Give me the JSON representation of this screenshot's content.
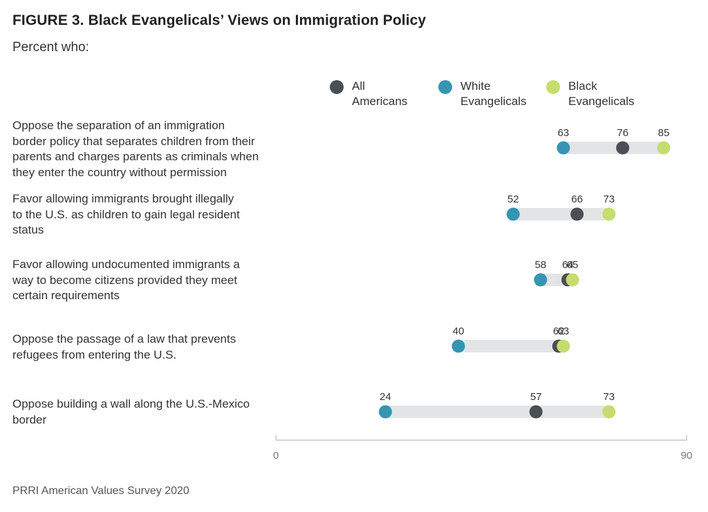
{
  "title": "FIGURE 3. Black Evangelicals’ Views on Immigration Policy",
  "subtitle": "Percent who:",
  "source": "PRRI American Values Survey 2020",
  "legend": [
    {
      "line1": "All",
      "line2": "Americans",
      "color": "#4a4f55"
    },
    {
      "line1": "White",
      "line2": "Evangelicals",
      "color": "#3595b3"
    },
    {
      "line1": "Black",
      "line2": "Evangelicals",
      "color": "#c5dd6e"
    }
  ],
  "chart_data": {
    "type": "dot-range",
    "xlim": [
      0,
      90
    ],
    "x_ticks": [
      "0",
      "90"
    ],
    "series": [
      {
        "name": "All Americans",
        "color": "#4a4f55"
      },
      {
        "name": "White Evangelicals",
        "color": "#3595b3"
      },
      {
        "name": "Black Evangelicals",
        "color": "#c5dd6e"
      }
    ],
    "categories": [
      {
        "label": [
          "Oppose the separation of an immigration",
          "border policy that separates children from their",
          "parents and charges parents as criminals when",
          "they enter the country without permission"
        ],
        "all": 76,
        "white": 63,
        "black": 85
      },
      {
        "label": [
          "Favor allowing immigrants brought illegally",
          "to the U.S. as children to gain legal resident",
          "status"
        ],
        "all": 66,
        "white": 52,
        "black": 73
      },
      {
        "label": [
          "Favor allowing undocumented immigrants a",
          "way to become citizens provided they meet",
          "certain requirements"
        ],
        "all": 64,
        "white": 58,
        "black": 65
      },
      {
        "label": [
          "Oppose the passage of a law that prevents",
          "refugees from entering the U.S."
        ],
        "all": 62,
        "white": 40,
        "black": 63
      },
      {
        "label": [
          "Oppose building a wall along the U.S.-Mexico",
          "border"
        ],
        "all": 57,
        "white": 24,
        "black": 73
      }
    ]
  }
}
